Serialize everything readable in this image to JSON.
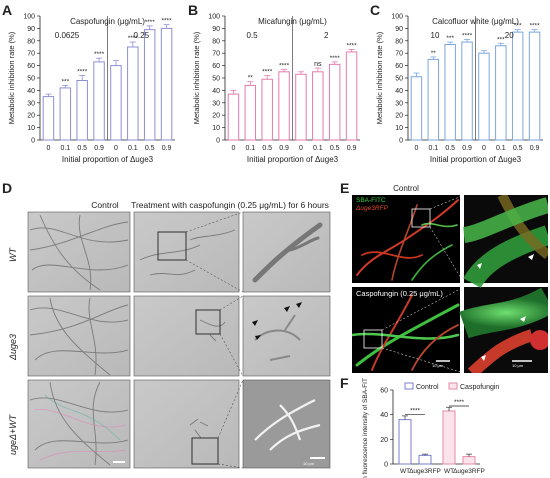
{
  "panel_letters": {
    "A": "A",
    "B": "B",
    "C": "C",
    "D": "D",
    "E": "E",
    "F": "F"
  },
  "colors": {
    "A": "#8c8fd6",
    "B": "#e57ab0",
    "C": "#7aa6e0",
    "F_control": "#7b7fcf",
    "F_caspofungin": "#e58aa8"
  },
  "chart_data": [
    {
      "type": "bar",
      "panel": "A",
      "ylabel": "Metabolic inhibition rate (%)",
      "xlabel": "Initial proportion of Δuge3",
      "group_title": "Caspofungin (μg/mL)",
      "groups": [
        "0.0625",
        "0.25"
      ],
      "categories": [
        "0",
        "0.1",
        "0.5",
        "0.9",
        "0",
        "0.1",
        "0.5",
        "0.9"
      ],
      "values": [
        35,
        42,
        48,
        63,
        60,
        75,
        89,
        90
      ],
      "errors": [
        2,
        2,
        4,
        3,
        4,
        4,
        3,
        3
      ],
      "significance": [
        "",
        "***",
        "****",
        "****",
        "",
        "****",
        "****",
        "****"
      ],
      "ylim": [
        0,
        100
      ],
      "yticks": [
        "0",
        "10",
        "20",
        "30",
        "40",
        "50",
        "60",
        "70",
        "80",
        "90",
        "100"
      ]
    },
    {
      "type": "bar",
      "panel": "B",
      "ylabel": "Metabolic inhibition rate (%)",
      "xlabel": "Initial proportion of Δuge3",
      "group_title": "Micafungin (μg/mL)",
      "groups": [
        "0.5",
        "2"
      ],
      "categories": [
        "0",
        "0.1",
        "0.5",
        "0.9",
        "0",
        "0.1",
        "0.5",
        "0.9"
      ],
      "values": [
        37,
        44,
        49,
        55,
        53,
        55,
        61,
        71
      ],
      "errors": [
        3,
        3,
        3,
        2,
        2,
        3,
        2,
        2
      ],
      "significance": [
        "",
        "**",
        "****",
        "****",
        "",
        "ns",
        "****",
        "****"
      ],
      "ylim": [
        0,
        100
      ],
      "yticks": [
        "0",
        "10",
        "20",
        "30",
        "40",
        "50",
        "60",
        "70",
        "80",
        "90",
        "100"
      ]
    },
    {
      "type": "bar",
      "panel": "C",
      "ylabel": "Metabolic inhibition rate (%)",
      "xlabel": "Initial proportion of Δuge3",
      "group_title": "Calcofluor white (μg/mL)",
      "groups": [
        "10",
        "20"
      ],
      "categories": [
        "0",
        "0.1",
        "0.5",
        "0.9",
        "0",
        "0.1",
        "0.5",
        "0.9"
      ],
      "values": [
        51,
        65,
        77,
        79,
        70,
        76,
        87,
        87
      ],
      "errors": [
        3,
        2,
        2,
        2,
        2,
        2,
        2,
        2
      ],
      "significance": [
        "",
        "**",
        "***",
        "****",
        "",
        "***",
        "***",
        "****"
      ],
      "ylim": [
        0,
        100
      ],
      "yticks": [
        "0",
        "10",
        "20",
        "30",
        "40",
        "50",
        "60",
        "70",
        "80",
        "90",
        "100"
      ]
    },
    {
      "type": "bar",
      "panel": "F",
      "ylabel": "Mean fluorescence intensity of SBA-FITC (%)",
      "legend": [
        "Control",
        "Caspofungin"
      ],
      "categories": [
        "WT",
        "Δuge3RFP",
        "WT",
        "Δuge3RFP"
      ],
      "values": [
        36,
        7,
        43,
        6
      ],
      "errors": [
        3,
        1,
        3,
        2
      ],
      "significance_pairs": [
        "****",
        "****"
      ],
      "ylim": [
        0,
        60
      ],
      "yticks": [
        "0",
        "20",
        "40",
        "60"
      ]
    }
  ],
  "panel_d": {
    "col_control": "Control",
    "col_treatment": "Treatment with caspofungin (0.25 μg/mL) for 6 hours",
    "rows": [
      "WT",
      "Δuge3",
      "ugeΔ+WT"
    ],
    "scale_bar": "10 μm"
  },
  "panel_e": {
    "legend_green": "SBA-FITC",
    "legend_red": "Δuge3RFP",
    "top_label": "Control",
    "bottom_label": "Caspofungin (0.25 μg/mL)",
    "scale_left": "10 μm",
    "scale_right": "10 μm"
  }
}
